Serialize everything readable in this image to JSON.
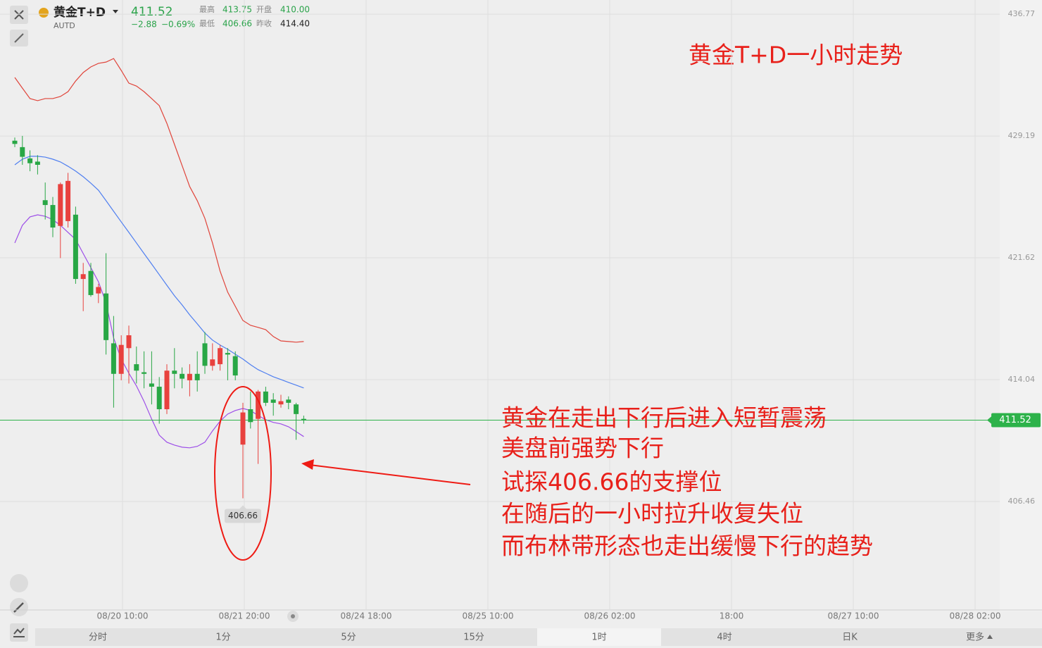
{
  "header": {
    "name": "黄金T+D",
    "code": "AUTD",
    "price": "411.52",
    "change": "−2.88",
    "change_pct": "−0.69%",
    "stats": [
      {
        "label": "最高",
        "value": "413.75"
      },
      {
        "label": "开盘",
        "value": "410.00"
      },
      {
        "label": "最低",
        "value": "406.66"
      },
      {
        "label": "昨收",
        "value": "414.40"
      }
    ]
  },
  "chart_data": {
    "type": "candlestick",
    "title": "黄金T+D一小时走势",
    "annotations": [
      "黄金在走出下行后进入短暂震荡",
      "美盘前强势下行",
      "试探406.66的支撑位",
      "在随后的一小时拉升收复失位",
      "而布林带形态也走出缓慢下行的趋势"
    ],
    "up_color": "#e8413e",
    "down_color": "#28a745",
    "open": [
      428.9,
      428.5,
      427.8,
      427.6,
      425.2,
      424.9,
      423.6,
      423.9,
      424.3,
      420.3,
      420.8,
      419.4,
      419.4,
      416.3,
      414.4,
      416.0,
      415.0,
      414.5,
      413.8,
      413.6,
      412.2,
      414.6,
      414.4,
      414.0,
      414.4,
      416.3,
      414.9,
      415.0,
      415.7,
      415.5,
      410.0,
      412.2,
      411.6,
      413.3,
      412.8,
      412.5,
      412.8,
      412.5,
      411.6
    ],
    "high": [
      429.1,
      429.2,
      428.3,
      428.0,
      426.3,
      425.4,
      426.3,
      426.9,
      424.8,
      421.3,
      421.3,
      420.0,
      421.9,
      418.0,
      416.8,
      417.4,
      416.1,
      415.8,
      415.8,
      414.2,
      415.0,
      416.0,
      414.8,
      415.0,
      415.8,
      417.0,
      416.3,
      416.2,
      416.0,
      415.8,
      412.6,
      413.3,
      413.4,
      413.6,
      413.2,
      413.1,
      413.0,
      412.6,
      411.8
    ],
    "low": [
      428.5,
      427.4,
      427.0,
      426.8,
      424.0,
      422.9,
      421.6,
      423.5,
      420.0,
      418.3,
      419.2,
      418.8,
      415.6,
      412.3,
      414.0,
      413.8,
      413.8,
      413.5,
      412.5,
      411.3,
      411.9,
      413.5,
      413.5,
      413.0,
      413.3,
      414.4,
      414.6,
      414.6,
      414.0,
      414.0,
      406.66,
      411.0,
      408.8,
      412.4,
      411.8,
      412.3,
      412.2,
      410.3,
      411.3
    ],
    "close": [
      428.7,
      427.9,
      427.5,
      427.4,
      424.9,
      423.5,
      426.2,
      426.4,
      420.3,
      420.6,
      419.3,
      419.8,
      416.5,
      414.4,
      416.2,
      416.8,
      414.6,
      414.4,
      413.6,
      412.2,
      414.6,
      414.4,
      414.1,
      414.4,
      414.0,
      414.9,
      415.3,
      416.0,
      415.6,
      414.3,
      412.0,
      411.4,
      413.3,
      412.6,
      412.6,
      412.7,
      412.6,
      411.9,
      411.52
    ],
    "bands": [
      {
        "color": "#e0443a",
        "values": [
          432.83,
          432.17,
          431.52,
          431.39,
          431.52,
          431.52,
          431.65,
          431.95,
          432.61,
          433.14,
          433.49,
          433.71,
          433.79,
          434.01,
          433.27,
          432.48,
          432.3,
          431.95,
          431.52,
          431.08,
          429.98,
          428.67,
          427.36,
          426.05,
          425.17,
          424.07,
          422.54,
          420.79,
          419.48,
          418.6,
          417.72,
          417.42,
          417.29,
          417.15,
          416.72,
          416.45,
          416.41,
          416.37,
          416.41
        ]
      },
      {
        "color": "#4f7ff0",
        "values": [
          427.4,
          427.75,
          427.93,
          427.93,
          427.88,
          427.75,
          427.58,
          427.31,
          427.01,
          426.66,
          426.26,
          425.82,
          425.17,
          424.51,
          423.85,
          423.2,
          422.54,
          421.88,
          421.23,
          420.57,
          419.91,
          419.26,
          418.69,
          418.07,
          417.51,
          416.94,
          416.5,
          416.19,
          415.93,
          415.62,
          415.32,
          414.97,
          414.66,
          414.44,
          414.22,
          414.05,
          413.87,
          413.7,
          413.52
        ]
      },
      {
        "color": "#9d4ee8",
        "values": [
          422.54,
          423.64,
          424.16,
          424.29,
          424.2,
          423.99,
          423.64,
          423.2,
          422.76,
          421.88,
          421.01,
          420.13,
          418.82,
          416.63,
          415.32,
          414.44,
          413.65,
          412.69,
          411.59,
          410.59,
          410.15,
          409.97,
          409.84,
          409.8,
          409.89,
          410.15,
          410.85,
          411.46,
          411.9,
          412.12,
          412.25,
          412.12,
          411.81,
          411.55,
          411.38,
          411.29,
          411.11,
          410.81,
          410.5
        ]
      }
    ],
    "last_price": 411.52,
    "last_price_color": "#2db24a",
    "low_marker": 406.66,
    "ylim": [
      399.76,
      437.65
    ],
    "yticks": [
      436.77,
      429.19,
      421.62,
      414.04,
      406.46
    ],
    "xtick_labels": [
      "08/20 10:00",
      "08/21 20:00",
      "08/24 18:00",
      "08/25 10:00",
      "08/26 02:00",
      "18:00",
      "08/27 10:00",
      "08/28 02:00"
    ],
    "grid": true
  },
  "tabs": [
    "分时",
    "1分",
    "5分",
    "15分",
    "1时",
    "4时",
    "日K",
    "更多"
  ],
  "selected_tab": 4
}
